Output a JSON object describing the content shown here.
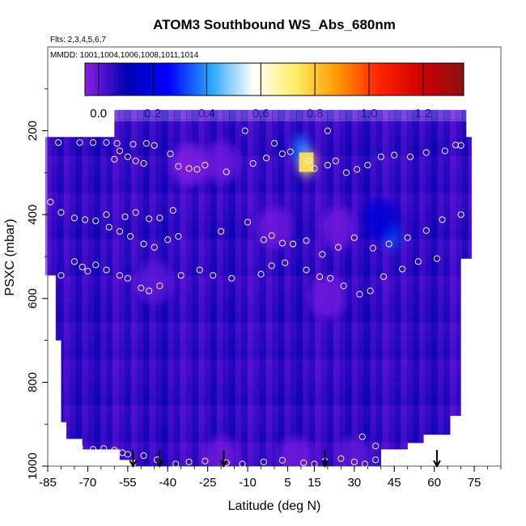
{
  "chart_data": {
    "type": "heatmap",
    "title": "ATOM3 Southbound WS_Abs_680nm",
    "subtitle_flights": "Flts: 2,3,4,5,6,7",
    "subtitle_dates": "MMDD: 1001,1004,1006,1008,1011,1014",
    "xlabel": "Latitude (deg N)",
    "ylabel": "PSXC (mbar)",
    "xlim": [
      -85,
      85
    ],
    "ylim": [
      1000,
      0
    ],
    "x_ticks": [
      "-85",
      "-70",
      "-55",
      "-40",
      "-25",
      "-10",
      "5",
      "15",
      "30",
      "45",
      "60",
      "75"
    ],
    "y_ticks": [
      "200",
      "400",
      "600",
      "800",
      "1000"
    ],
    "colorbar": {
      "range": [
        -0.05,
        1.35
      ],
      "tick_labels": [
        "0.0",
        "0.2",
        "0.4",
        "0.6",
        "0.8",
        "1.0",
        "1.2"
      ],
      "stops": [
        "#8c1fe6",
        "#0000b0",
        "#0000ff",
        "#2aa6ff",
        "#ffffff",
        "#ffee66",
        "#ff9900",
        "#ff2200",
        "#d00000",
        "#8c1010"
      ]
    },
    "background_value": 0.05,
    "highlights": [
      {
        "lat": 12,
        "p": 275,
        "value": 0.75,
        "note": "bright white-yellow core"
      },
      {
        "lat": 10,
        "p": 245,
        "value": 0.38
      },
      {
        "lat": 44,
        "p": 450,
        "value": 0.33
      },
      {
        "lat": 40,
        "p": 410,
        "value": 0.18
      },
      {
        "lat": -32,
        "p": 280,
        "value": -0.04
      },
      {
        "lat": -20,
        "p": 275,
        "value": -0.02
      },
      {
        "lat": 0,
        "p": 430,
        "value": -0.02
      },
      {
        "lat": 24,
        "p": 430,
        "value": -0.02
      },
      {
        "lat": 20,
        "p": 600,
        "value": -0.02
      },
      {
        "lat": -45,
        "p": 560,
        "value": 0.0
      },
      {
        "lat": -20,
        "p": 980,
        "value": -0.02
      },
      {
        "lat": 8,
        "p": 980,
        "value": -0.02
      },
      {
        "lat": 30,
        "p": 980,
        "value": 0.0
      }
    ],
    "sample_points": [
      [
        -81,
        228
      ],
      [
        -73,
        228
      ],
      [
        -68,
        228
      ],
      [
        -63,
        228
      ],
      [
        -59,
        230
      ],
      [
        -53,
        232
      ],
      [
        -48,
        230
      ],
      [
        -45,
        235
      ],
      [
        -39,
        255
      ],
      [
        -58,
        248
      ],
      [
        -60,
        268
      ],
      [
        -55,
        262
      ],
      [
        -52,
        272
      ],
      [
        -49,
        278
      ],
      [
        -36,
        285
      ],
      [
        -32,
        290
      ],
      [
        -29,
        292
      ],
      [
        -26,
        282
      ],
      [
        -18,
        298
      ],
      [
        -8,
        278
      ],
      [
        -3,
        265
      ],
      [
        3,
        255
      ],
      [
        6,
        250
      ],
      [
        13,
        272
      ],
      [
        15,
        290
      ],
      [
        20,
        282
      ],
      [
        23,
        272
      ],
      [
        27,
        300
      ],
      [
        31,
        292
      ],
      [
        35,
        282
      ],
      [
        40,
        262
      ],
      [
        45,
        258
      ],
      [
        51,
        262
      ],
      [
        57,
        252
      ],
      [
        64,
        248
      ],
      [
        68,
        234
      ],
      [
        70,
        235
      ],
      [
        -11,
        200
      ],
      [
        0,
        230
      ],
      [
        20,
        200
      ],
      [
        -84,
        370
      ],
      [
        -80,
        395
      ],
      [
        -75,
        408
      ],
      [
        -71,
        412
      ],
      [
        -67,
        415
      ],
      [
        -63,
        400
      ],
      [
        -56,
        405
      ],
      [
        -52,
        395
      ],
      [
        -47,
        410
      ],
      [
        -43,
        408
      ],
      [
        -38,
        390
      ],
      [
        -62,
        430
      ],
      [
        -58,
        440
      ],
      [
        -54,
        452
      ],
      [
        -49,
        470
      ],
      [
        -45,
        478
      ],
      [
        -40,
        460
      ],
      [
        -36,
        452
      ],
      [
        -20,
        440
      ],
      [
        -10,
        418
      ],
      [
        -4,
        460
      ],
      [
        -1,
        450
      ],
      [
        3,
        468
      ],
      [
        7,
        470
      ],
      [
        12,
        462
      ],
      [
        18,
        495
      ],
      [
        24,
        478
      ],
      [
        30,
        455
      ],
      [
        37,
        480
      ],
      [
        43,
        470
      ],
      [
        50,
        455
      ],
      [
        57,
        438
      ],
      [
        63,
        412
      ],
      [
        70,
        400
      ],
      [
        -80,
        545
      ],
      [
        -75,
        512
      ],
      [
        -72,
        525
      ],
      [
        -70,
        535
      ],
      [
        -67,
        520
      ],
      [
        -63,
        532
      ],
      [
        -58,
        545
      ],
      [
        -55,
        552
      ],
      [
        -50,
        575
      ],
      [
        -47,
        582
      ],
      [
        -43,
        570
      ],
      [
        -35,
        545
      ],
      [
        -28,
        532
      ],
      [
        -23,
        545
      ],
      [
        -16,
        552
      ],
      [
        -5,
        542
      ],
      [
        -1,
        522
      ],
      [
        4,
        515
      ],
      [
        12,
        532
      ],
      [
        17,
        548
      ],
      [
        21,
        552
      ],
      [
        26,
        570
      ],
      [
        32,
        590
      ],
      [
        36,
        582
      ],
      [
        41,
        548
      ],
      [
        48,
        530
      ],
      [
        54,
        512
      ],
      [
        61,
        505
      ],
      [
        -73,
        955
      ],
      [
        -68,
        960
      ],
      [
        -64,
        958
      ],
      [
        -60,
        962
      ],
      [
        -57,
        968
      ],
      [
        -55,
        972
      ],
      [
        -49,
        975
      ],
      [
        -44,
        985
      ],
      [
        -37,
        995
      ],
      [
        -32,
        990
      ],
      [
        -26,
        988
      ],
      [
        -18,
        992
      ],
      [
        -12,
        995
      ],
      [
        -4,
        990
      ],
      [
        3,
        986
      ],
      [
        11,
        992
      ],
      [
        15,
        995
      ],
      [
        19,
        988
      ],
      [
        25,
        982
      ],
      [
        30,
        990
      ],
      [
        34,
        995
      ],
      [
        38,
        985
      ],
      [
        42,
        990
      ],
      [
        46,
        985
      ],
      [
        33,
        930
      ],
      [
        38,
        952
      ],
      [
        48,
        970
      ]
    ]
  }
}
